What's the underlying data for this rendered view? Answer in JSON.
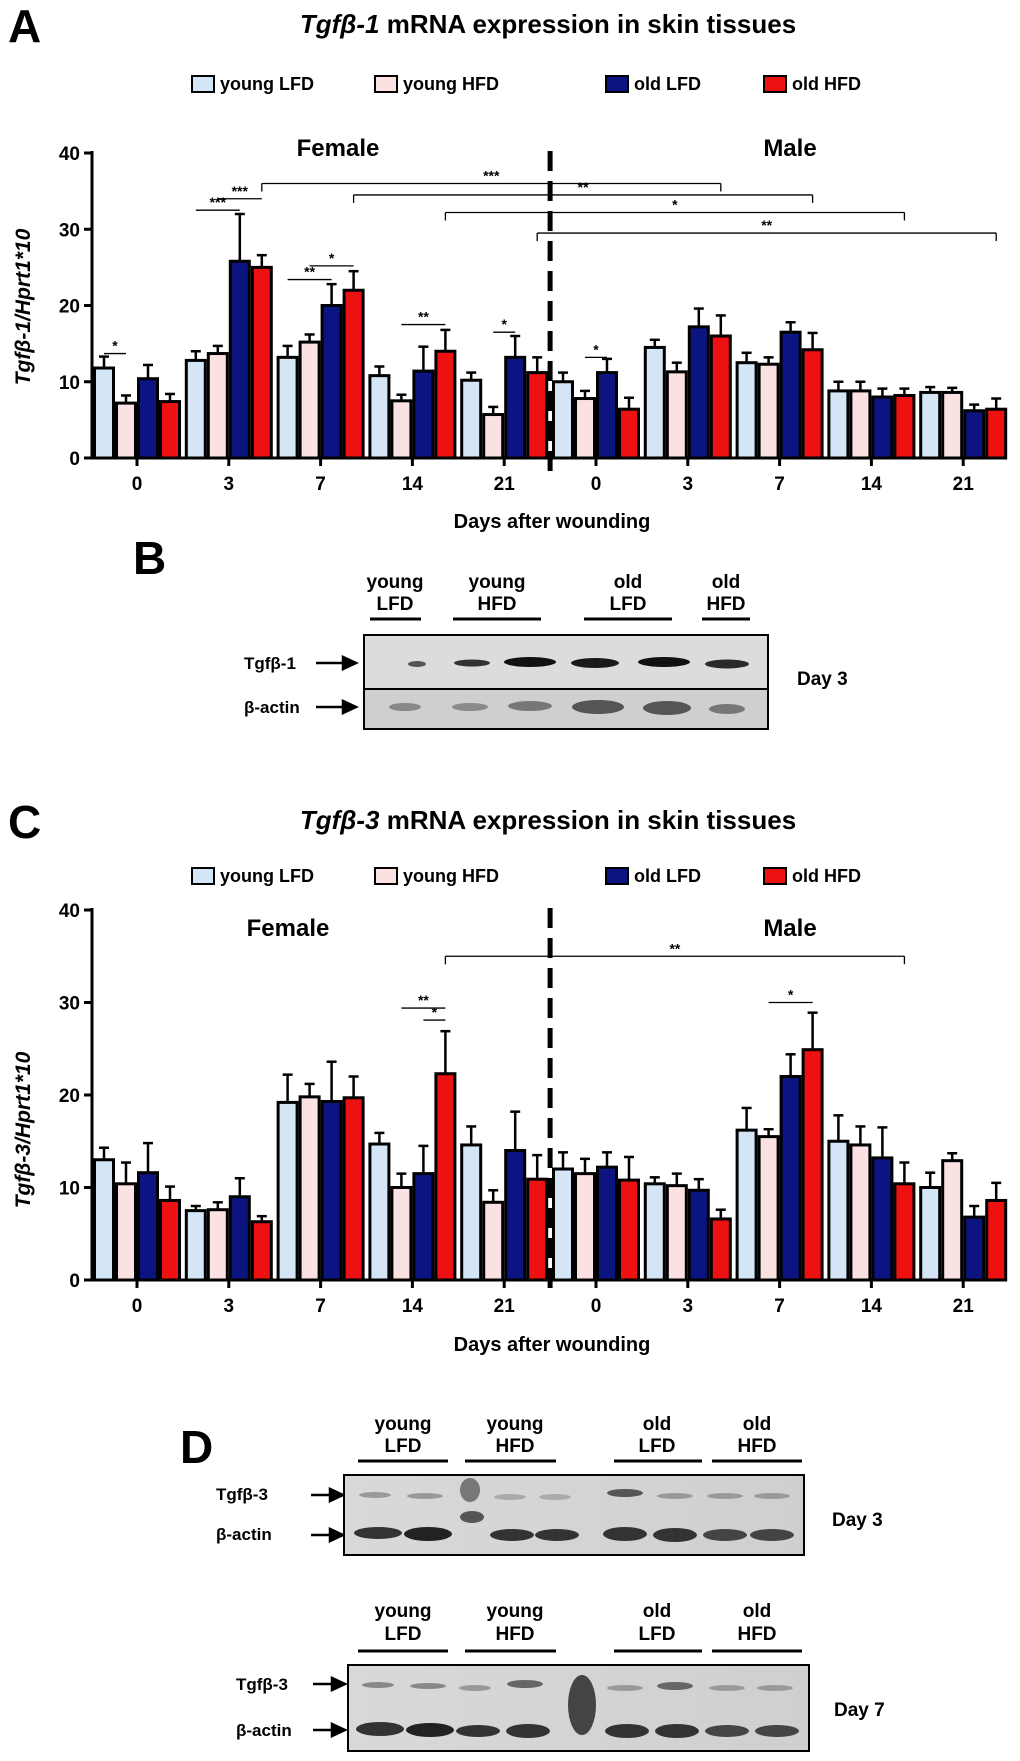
{
  "colors": {
    "young_lfd": "#d4e5f5",
    "young_hfd": "#fbe2e2",
    "old_lfd": "#0b1480",
    "old_hfd": "#ee1111"
  },
  "legend": [
    {
      "key": "young_lfd",
      "label": "young LFD"
    },
    {
      "key": "young_hfd",
      "label": "young HFD"
    },
    {
      "key": "old_lfd",
      "label": "old LFD"
    },
    {
      "key": "old_hfd",
      "label": "old HFD"
    }
  ],
  "chart_data": [
    {
      "panel": "A",
      "type": "bar",
      "title_italic": "Tgfβ-1",
      "title_rest": " mRNA expression in skin tissues",
      "ylabel": "Tgfβ-1/Hprt1*10",
      "xlabel": "Days after wounding",
      "ylim": [
        0,
        40
      ],
      "yticks": [
        0,
        10,
        20,
        30,
        40
      ],
      "female_label": "Female",
      "male_label": "Male",
      "categories": [
        "0",
        "3",
        "7",
        "14",
        "21",
        "0",
        "3",
        "7",
        "14",
        "21"
      ],
      "series": [
        {
          "name": "young LFD",
          "values": [
            11.8,
            12.8,
            13.2,
            10.8,
            10.2,
            10.0,
            14.5,
            12.5,
            8.8,
            8.6
          ],
          "errors": [
            1.5,
            1.2,
            1.5,
            1.2,
            1.0,
            1.2,
            1.0,
            1.3,
            1.2,
            0.7
          ]
        },
        {
          "name": "young HFD",
          "values": [
            7.2,
            13.7,
            15.2,
            7.5,
            5.7,
            7.8,
            11.3,
            12.3,
            8.8,
            8.6
          ],
          "errors": [
            1.0,
            1.0,
            1.0,
            0.8,
            1.0,
            1.0,
            1.2,
            0.9,
            1.2,
            0.6
          ]
        },
        {
          "name": "old LFD",
          "values": [
            10.4,
            25.8,
            20.0,
            11.4,
            13.2,
            11.2,
            17.2,
            16.5,
            8.0,
            6.2
          ],
          "errors": [
            1.8,
            6.2,
            2.8,
            3.2,
            2.8,
            1.8,
            2.4,
            1.3,
            1.1,
            0.8
          ]
        },
        {
          "name": "old HFD",
          "values": [
            7.4,
            25.0,
            22.0,
            14.0,
            11.2,
            6.4,
            16.0,
            14.2,
            8.2,
            6.4
          ],
          "errors": [
            1.0,
            1.6,
            2.5,
            2.8,
            2.0,
            1.5,
            2.7,
            2.2,
            0.9,
            1.4
          ]
        }
      ],
      "significance": [
        {
          "label": "*",
          "from": [
            0,
            0
          ],
          "to": [
            0,
            1
          ],
          "y": 13.7
        },
        {
          "label": "***",
          "from": [
            1,
            0
          ],
          "to": [
            1,
            2
          ],
          "y": 32.5
        },
        {
          "label": "***",
          "from": [
            1,
            1
          ],
          "to": [
            1,
            3
          ],
          "y": 34.0
        },
        {
          "label": "**",
          "from": [
            2,
            0
          ],
          "to": [
            2,
            2
          ],
          "y": 23.4
        },
        {
          "label": "*",
          "from": [
            2,
            1
          ],
          "to": [
            2,
            3
          ],
          "y": 25.2
        },
        {
          "label": "**",
          "from": [
            3,
            1
          ],
          "to": [
            3,
            3
          ],
          "y": 17.5
        },
        {
          "label": "*",
          "from": [
            4,
            1
          ],
          "to": [
            4,
            2
          ],
          "y": 16.5
        },
        {
          "label": "*",
          "from": [
            5,
            1
          ],
          "to": [
            5,
            2
          ],
          "y": 13.2
        },
        {
          "label": "***",
          "from": [
            1,
            3
          ],
          "to": [
            6,
            3
          ],
          "y": 36.0,
          "bracket": true
        },
        {
          "label": "**",
          "from": [
            2,
            3
          ],
          "to": [
            7,
            3
          ],
          "y": 34.5,
          "bracket": true
        },
        {
          "label": "*",
          "from": [
            3,
            3
          ],
          "to": [
            8,
            3
          ],
          "y": 32.2,
          "bracket": true
        },
        {
          "label": "**",
          "from": [
            4,
            3
          ],
          "to": [
            9,
            3
          ],
          "y": 29.5,
          "bracket": true
        }
      ]
    },
    {
      "panel": "C",
      "type": "bar",
      "title_italic": "Tgfβ-3",
      "title_rest": " mRNA expression in skin tissues",
      "ylabel": "Tgfβ-3/Hprt1*10",
      "xlabel": "Days after wounding",
      "ylim": [
        0,
        40
      ],
      "yticks": [
        0,
        10,
        20,
        30,
        40
      ],
      "female_label": "Female",
      "male_label": "Male",
      "categories": [
        "0",
        "3",
        "7",
        "14",
        "21",
        "0",
        "3",
        "7",
        "14",
        "21"
      ],
      "series": [
        {
          "name": "young LFD",
          "values": [
            13.0,
            7.5,
            19.2,
            14.7,
            14.6,
            12.0,
            10.4,
            16.2,
            15.0,
            10.0
          ],
          "errors": [
            1.3,
            0.5,
            3.0,
            1.2,
            2.0,
            1.8,
            0.7,
            2.4,
            2.8,
            1.6
          ]
        },
        {
          "name": "young HFD",
          "values": [
            10.4,
            7.6,
            19.8,
            10.0,
            8.4,
            11.5,
            10.2,
            15.5,
            14.6,
            12.9
          ],
          "errors": [
            2.3,
            0.8,
            1.4,
            1.5,
            1.3,
            1.6,
            1.3,
            0.8,
            2.0,
            0.8
          ]
        },
        {
          "name": "old LFD",
          "values": [
            11.6,
            9.0,
            19.3,
            11.5,
            14.0,
            12.2,
            9.7,
            22.0,
            13.2,
            6.8
          ],
          "errors": [
            3.2,
            2.0,
            4.3,
            3.0,
            4.2,
            1.6,
            1.2,
            2.4,
            3.3,
            1.2
          ]
        },
        {
          "name": "old HFD",
          "values": [
            8.6,
            6.3,
            19.7,
            22.3,
            10.9,
            10.8,
            6.6,
            24.9,
            10.4,
            8.6
          ],
          "errors": [
            1.5,
            0.6,
            2.3,
            4.6,
            2.6,
            2.5,
            1.0,
            4.0,
            2.3,
            1.9
          ]
        }
      ],
      "significance": [
        {
          "label": "**",
          "from": [
            3,
            1
          ],
          "to": [
            3,
            3
          ],
          "y": 29.4
        },
        {
          "label": "*",
          "from": [
            3,
            2
          ],
          "to": [
            3,
            3
          ],
          "y": 28.1
        },
        {
          "label": "*",
          "from": [
            7,
            1
          ],
          "to": [
            7,
            3
          ],
          "y": 30.0
        },
        {
          "label": "**",
          "from": [
            3,
            3
          ],
          "to": [
            8,
            3
          ],
          "y": 35.0,
          "bracket": true
        }
      ]
    }
  ],
  "blots": {
    "B": {
      "letter": "B",
      "groups": [
        {
          "line1": "young",
          "line2": "LFD"
        },
        {
          "line1": "young",
          "line2": "HFD"
        },
        {
          "line1": "old",
          "line2": "LFD"
        },
        {
          "line1": "old",
          "line2": "HFD"
        }
      ],
      "rows": [
        "Tgfβ-1",
        "β-actin"
      ],
      "day": "Day 3"
    },
    "D": {
      "letter": "D",
      "groups": [
        {
          "line1": "young",
          "line2": "LFD"
        },
        {
          "line1": "young",
          "line2": "HFD"
        },
        {
          "line1": "old",
          "line2": "LFD"
        },
        {
          "line1": "old",
          "line2": "HFD"
        }
      ],
      "rows": [
        "Tgfβ-3",
        "β-actin"
      ],
      "day_1": "Day 3",
      "day_2": "Day 7"
    }
  }
}
